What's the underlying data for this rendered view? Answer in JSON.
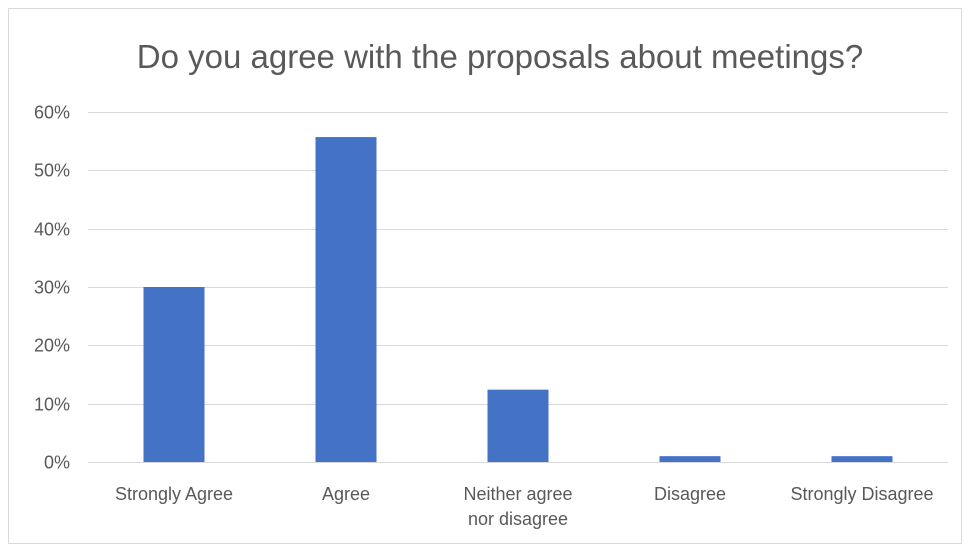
{
  "chart_data": {
    "type": "bar",
    "title": "Do you agree with the proposals about meetings?",
    "categories": [
      [
        "Strongly Agree"
      ],
      [
        "Agree"
      ],
      [
        "Neither agree",
        "nor disagree"
      ],
      [
        "Disagree"
      ],
      [
        "Strongly Disagree"
      ]
    ],
    "series": [
      {
        "values": [
          0.3,
          0.557,
          0.124,
          0.01,
          0.01
        ],
        "color": "#4472c4"
      }
    ],
    "ylim": [
      0,
      0.6
    ],
    "yticks": [
      0,
      0.1,
      0.2,
      0.3,
      0.4,
      0.5,
      0.6
    ],
    "ytick_labels": [
      "0%",
      "10%",
      "20%",
      "30%",
      "40%",
      "50%",
      "60%"
    ],
    "grid": true,
    "legend": "none",
    "gridline_color": "#d9d9d9",
    "text_color": "#595959"
  }
}
